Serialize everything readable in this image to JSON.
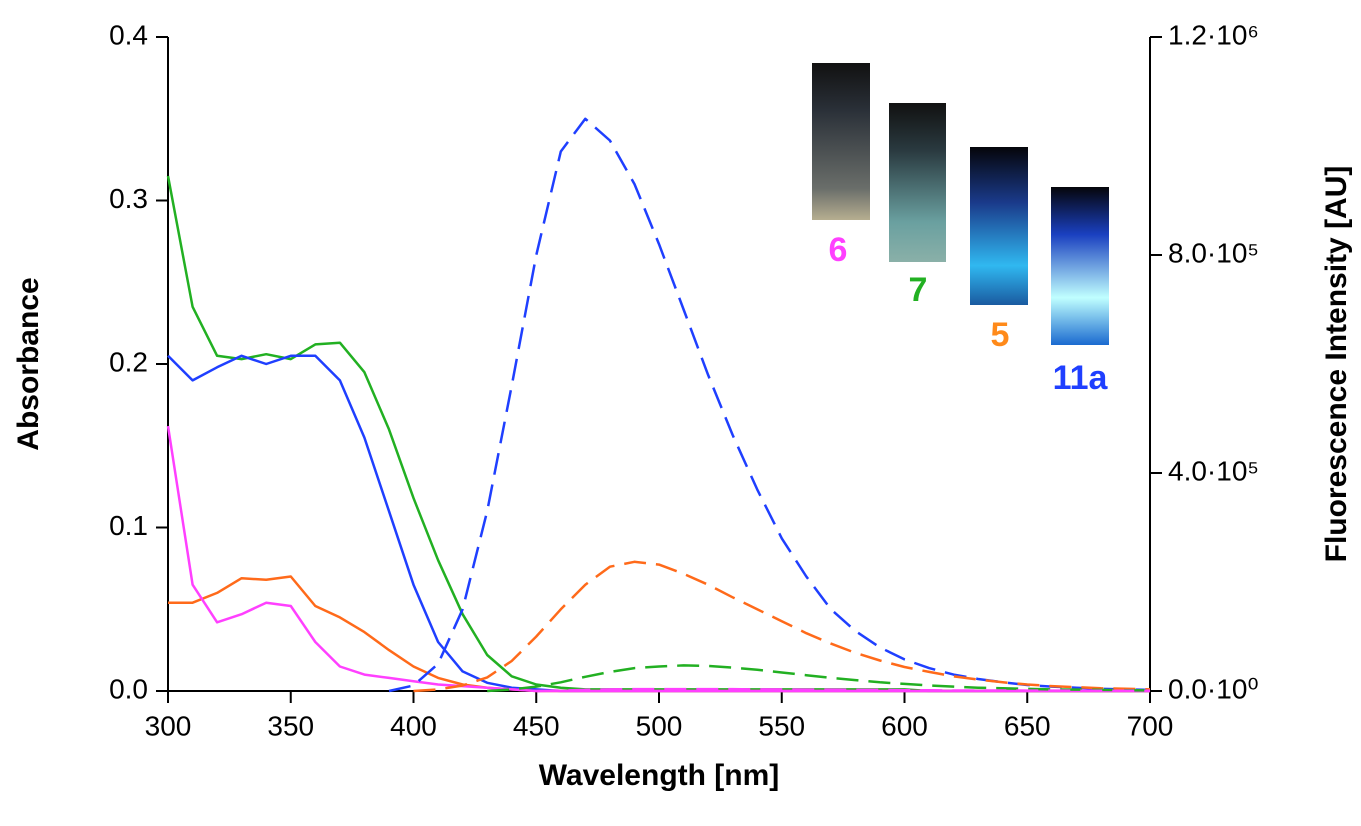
{
  "chart_data": {
    "type": "line",
    "x_label": "Wavelength [nm]",
    "y_label": "Absorbance",
    "y2_label": "Fluorescence Intensity [AU]",
    "xlim": [
      300,
      700
    ],
    "xticks": [
      300,
      350,
      400,
      450,
      500,
      550,
      600,
      650,
      700
    ],
    "ylim": [
      0,
      0.4
    ],
    "yticks": [
      {
        "value": 0,
        "label": "0.0"
      },
      0.1,
      0.2,
      0.3,
      0.4
    ],
    "y2lim": [
      0,
      1200000
    ],
    "y2ticks": [
      {
        "value": 0,
        "label": "0.0·10⁰"
      },
      {
        "value": 400000,
        "label": "4.0·10⁵"
      },
      {
        "value": 800000,
        "label": "8.0·10⁵"
      },
      {
        "value": 1200000,
        "label": "1.2·10⁶"
      }
    ],
    "x": [
      300,
      310,
      320,
      330,
      340,
      350,
      360,
      370,
      380,
      390,
      400,
      410,
      420,
      430,
      440,
      450,
      460,
      470,
      480,
      490,
      500,
      510,
      520,
      530,
      540,
      550,
      560,
      570,
      580,
      590,
      600,
      610,
      620,
      630,
      640,
      650,
      660,
      670,
      680,
      690,
      700
    ],
    "series": [
      {
        "color": "#22b022",
        "dashed": false,
        "values": [
          0.315,
          0.235,
          0.205,
          0.203,
          0.206,
          0.203,
          0.212,
          0.213,
          0.195,
          0.16,
          0.118,
          0.08,
          0.047,
          0.022,
          0.009,
          0.004,
          0.002,
          0.001,
          0.001,
          0.001,
          0.001,
          0.001,
          0.001,
          0.001,
          0.001,
          0.001,
          0.001,
          0.001,
          0.001,
          0.001,
          0.001,
          0,
          0,
          0,
          0,
          0,
          0,
          0,
          0,
          0,
          0
        ]
      },
      {
        "color": "#1f3fff",
        "dashed": false,
        "values": [
          0.205,
          0.19,
          0.198,
          0.205,
          0.2,
          0.205,
          0.205,
          0.19,
          0.155,
          0.11,
          0.065,
          0.03,
          0.012,
          0.005,
          0.002,
          0.001,
          0,
          0,
          0,
          0,
          0,
          0,
          0,
          0,
          0,
          0,
          0,
          0,
          0,
          0,
          0,
          0,
          0,
          0,
          0,
          0,
          0,
          0,
          0,
          0,
          0
        ]
      },
      {
        "color": "#ff6a1a",
        "dashed": false,
        "values": [
          0.054,
          0.054,
          0.06,
          0.069,
          0.068,
          0.07,
          0.052,
          0.045,
          0.036,
          0.025,
          0.015,
          0.008,
          0.004,
          0.002,
          0.001,
          0,
          0,
          0,
          0,
          0,
          0,
          0,
          0,
          0,
          0,
          0,
          0,
          0,
          0,
          0,
          0,
          0,
          0,
          0,
          0,
          0,
          0,
          0,
          0,
          0,
          0
        ]
      },
      {
        "color": "#ff40ff",
        "dashed": false,
        "values": [
          0.162,
          0.065,
          0.042,
          0.047,
          0.054,
          0.052,
          0.03,
          0.015,
          0.01,
          0.008,
          0.006,
          0.004,
          0.003,
          0.002,
          0.001,
          0,
          0,
          0,
          0,
          0,
          0,
          0,
          0,
          0,
          0,
          0,
          0,
          0,
          0,
          0,
          0,
          0,
          0,
          0,
          0,
          0,
          0,
          0,
          0,
          0,
          0
        ]
      },
      {
        "color": "#1f3fff",
        "dashed": true,
        "axis": "y2",
        "values": [
          null,
          null,
          null,
          null,
          null,
          null,
          null,
          null,
          null,
          0,
          10000,
          50000,
          150000,
          330000,
          560000,
          800000,
          990000,
          1050000,
          1010000,
          930000,
          820000,
          700000,
          580000,
          470000,
          370000,
          280000,
          210000,
          150000,
          110000,
          80000,
          58000,
          42000,
          30000,
          22000,
          16000,
          11000,
          8000,
          6000,
          4000,
          3000,
          2000
        ]
      },
      {
        "color": "#ff6a1a",
        "dashed": true,
        "axis": "y2",
        "values": [
          null,
          null,
          null,
          null,
          null,
          null,
          null,
          null,
          null,
          null,
          0,
          3000,
          10000,
          25000,
          55000,
          100000,
          150000,
          195000,
          228000,
          237000,
          232000,
          215000,
          195000,
          172000,
          150000,
          128000,
          106000,
          87000,
          70000,
          56000,
          44000,
          35000,
          27000,
          21000,
          16000,
          12000,
          9000,
          7000,
          5000,
          4000,
          3000
        ]
      },
      {
        "color": "#22b022",
        "dashed": true,
        "axis": "y2",
        "values": [
          null,
          null,
          null,
          null,
          null,
          null,
          null,
          null,
          null,
          null,
          null,
          null,
          null,
          0,
          3000,
          8000,
          16000,
          26000,
          35000,
          42000,
          45000,
          47000,
          46000,
          43000,
          39000,
          34000,
          29000,
          24000,
          20000,
          16000,
          13000,
          10000,
          8000,
          6000,
          5000,
          4000,
          3000,
          2500,
          2000,
          1500,
          1000
        ]
      },
      {
        "color": "#ff40ff",
        "dashed": true,
        "axis": "y2",
        "values": [
          null,
          null,
          null,
          null,
          null,
          null,
          null,
          null,
          null,
          null,
          null,
          null,
          null,
          null,
          null,
          0,
          1000,
          2000,
          3000,
          3500,
          3500,
          3500,
          3500,
          3500,
          3000,
          3000,
          2500,
          2500,
          2000,
          2000,
          1500,
          1500,
          1000,
          1000,
          1000,
          800,
          700,
          600,
          500,
          500,
          500
        ]
      }
    ],
    "annotations": [
      {
        "text": "6",
        "color": "#ff40ff"
      },
      {
        "text": "7",
        "color": "#22b022"
      },
      {
        "text": "5",
        "color": "#ff8a1a"
      },
      {
        "text": "11a",
        "color": "#1f3fff"
      }
    ]
  }
}
